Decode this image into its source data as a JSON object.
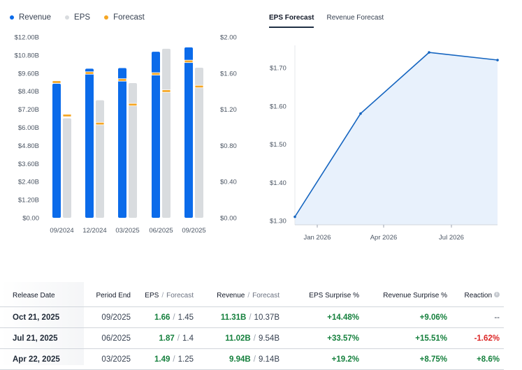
{
  "legend": {
    "revenue": "Revenue",
    "eps": "EPS",
    "forecast": "Forecast"
  },
  "colors": {
    "revenue": "#0b6bea",
    "eps": "#d9dcdf",
    "forecast": "#f5a623",
    "line": "#1565c0",
    "area": "#e8f1fc",
    "positive": "#15803d",
    "negative": "#dc2626"
  },
  "tabs": {
    "eps_forecast": "EPS Forecast",
    "revenue_forecast": "Revenue Forecast"
  },
  "chart_data": [
    {
      "type": "bar",
      "categories": [
        "09/2024",
        "12/2024",
        "03/2025",
        "06/2025",
        "09/2025"
      ],
      "series": [
        {
          "name": "Revenue",
          "axis": "left",
          "values": [
            8.9,
            9.9,
            9.94,
            11.02,
            11.31
          ],
          "forecast": [
            9.0,
            9.6,
            9.14,
            9.54,
            10.37
          ]
        },
        {
          "name": "EPS",
          "axis": "right",
          "values": [
            1.1,
            1.3,
            1.49,
            1.87,
            1.66
          ],
          "forecast": [
            1.13,
            1.04,
            1.25,
            1.4,
            1.45
          ]
        }
      ],
      "y_left_ticks": [
        "$12.00B",
        "$10.80B",
        "$9.60B",
        "$8.40B",
        "$7.20B",
        "$6.00B",
        "$4.80B",
        "$3.60B",
        "$2.40B",
        "$1.20B",
        "$0.00"
      ],
      "y_right_ticks": [
        "$2.00",
        "$1.60",
        "$1.20",
        "$0.80",
        "$0.40",
        "$0.00"
      ],
      "ylim_left": [
        0,
        12
      ],
      "ylim_right": [
        0,
        2
      ],
      "grid": false,
      "legend": "top-left"
    },
    {
      "type": "area",
      "x": [
        "2025-12",
        "2026-03",
        "2026-06",
        "2026-09"
      ],
      "values": [
        1.31,
        1.58,
        1.74,
        1.72
      ],
      "x_ticks": [
        "Jan 2026",
        "Apr 2026",
        "Jul 2026"
      ],
      "y_ticks": [
        "$1.70",
        "$1.60",
        "$1.50",
        "$1.40",
        "$1.30"
      ],
      "ylim": [
        1.3,
        1.7
      ],
      "grid": false,
      "legend": "none"
    }
  ],
  "table": {
    "headers": {
      "release": "Release Date",
      "period": "Period End",
      "eps": "EPS",
      "eps_fc": "Forecast",
      "revenue": "Revenue",
      "revenue_fc": "Forecast",
      "eps_surprise": "EPS Surprise %",
      "revenue_surprise": "Revenue Surprise %",
      "reaction": "Reaction"
    },
    "slash": "/",
    "rows": [
      {
        "release": "Oct 21, 2025",
        "period": "09/2025",
        "eps": "1.66",
        "eps_fc": "1.45",
        "revenue": "11.31B",
        "revenue_fc": "10.37B",
        "eps_surprise": "+14.48%",
        "revenue_surprise": "+9.06%",
        "reaction": "--"
      },
      {
        "release": "Jul 21, 2025",
        "period": "06/2025",
        "eps": "1.87",
        "eps_fc": "1.4",
        "revenue": "11.02B",
        "revenue_fc": "9.54B",
        "eps_surprise": "+33.57%",
        "revenue_surprise": "+15.51%",
        "reaction": "-1.62%"
      },
      {
        "release": "Apr 22, 2025",
        "period": "03/2025",
        "eps": "1.49",
        "eps_fc": "1.25",
        "revenue": "9.94B",
        "revenue_fc": "9.14B",
        "eps_surprise": "+19.2%",
        "revenue_surprise": "+8.75%",
        "reaction": "+8.6%"
      }
    ]
  }
}
